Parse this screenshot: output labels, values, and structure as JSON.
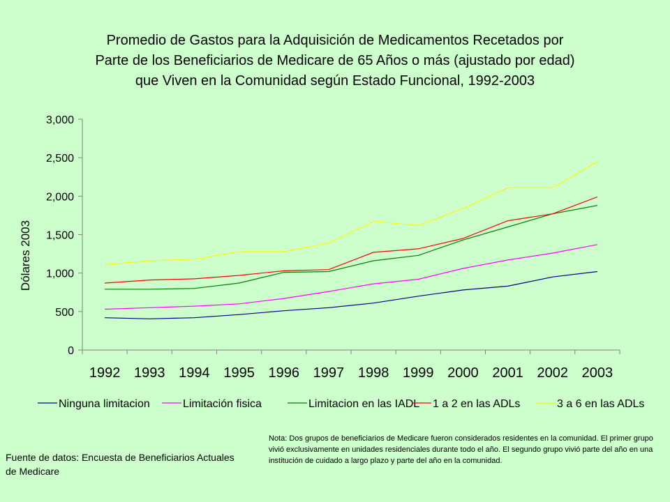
{
  "chart_data": {
    "type": "line",
    "title_lines": [
      "Promedio de Gastos para la Adquisición de Medicamentos Recetados por",
      "Parte de los Beneficiarios de Medicare de 65 Años o más (ajustado por edad)",
      "que Viven en la Comunidad según Estado Funcional, 1992-2003"
    ],
    "ylabel": "Dólares 2003",
    "xlabel": "",
    "ylim": [
      0,
      3000
    ],
    "yticks": [
      0,
      500,
      1000,
      1500,
      2000,
      2500,
      3000
    ],
    "ytick_labels": [
      "0",
      "500",
      "1,000",
      "1,500",
      "2,000",
      "2,500",
      "3,000"
    ],
    "categories": [
      "1992",
      "1993",
      "1994",
      "1995",
      "1996",
      "1997",
      "1998",
      "1999",
      "2000",
      "2001",
      "2002",
      "2003"
    ],
    "legend_position": "bottom",
    "series": [
      {
        "name": "Ninguna limitacion",
        "color": "#000080",
        "values": [
          420,
          405,
          420,
          460,
          510,
          550,
          610,
          700,
          780,
          830,
          950,
          1020
        ]
      },
      {
        "name": "Limitación fisica",
        "color": "#ff00ff",
        "values": [
          530,
          550,
          570,
          600,
          670,
          760,
          860,
          920,
          1060,
          1170,
          1260,
          1370
        ]
      },
      {
        "name": "Limitacion en las IADL",
        "color": "#008000",
        "values": [
          790,
          790,
          800,
          870,
          1010,
          1020,
          1160,
          1230,
          1430,
          1600,
          1770,
          1880
        ]
      },
      {
        "name": "1 a 2 en las ADLs",
        "color": "#ff0000",
        "values": [
          870,
          910,
          925,
          970,
          1030,
          1045,
          1270,
          1315,
          1450,
          1680,
          1770,
          1990
        ]
      },
      {
        "name": "3 a 6 en las ADLs",
        "color": "#ffff00",
        "values": [
          1110,
          1160,
          1180,
          1280,
          1280,
          1390,
          1670,
          1620,
          1840,
          2110,
          2110,
          2450
        ]
      }
    ]
  },
  "footer": {
    "source": "Fuente de datos: Encuesta de Beneficiarios Actuales de Medicare",
    "note": "Nota: Dos grupos de beneficiarios de Medicare fueron considerados residentes en la comunidad. El primer grupo vivió exclusivamente en unidades residenciales durante todo el año. El segundo grupo vivió parte del año en una institución de cuidado a largo plazo y parte del año en la comunidad."
  }
}
